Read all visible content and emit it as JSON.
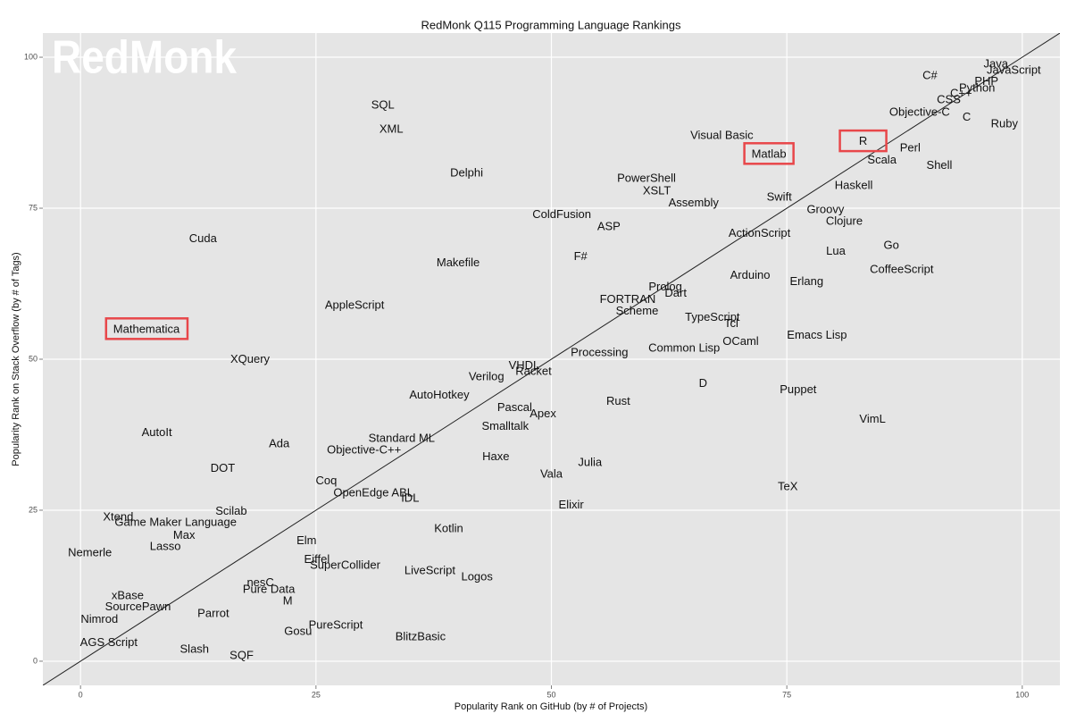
{
  "chart_data": {
    "type": "text-scatter",
    "title": "RedMonk Q115 Programming Language Rankings",
    "x_label": "Popularity Rank on GitHub (by # of Projects)",
    "y_label": "Popularity Rank on Stack Overflow (by # of Tags)",
    "watermark": "RedMonk",
    "xlim": [
      -4,
      104
    ],
    "ylim": [
      -4,
      104
    ],
    "xticks": [
      0,
      25,
      50,
      75,
      100
    ],
    "yticks": [
      0,
      25,
      50,
      75,
      100
    ],
    "grid": true,
    "diagonal": true,
    "highlight_color": "#e8474a",
    "points": [
      {
        "label": "Java",
        "x": 97.2,
        "y": 98.8
      },
      {
        "label": "JavaScript",
        "x": 99.1,
        "y": 97.8
      },
      {
        "label": "PHP",
        "x": 96.2,
        "y": 95.9
      },
      {
        "label": "Python",
        "x": 95.2,
        "y": 94.8
      },
      {
        "label": "C#",
        "x": 90.2,
        "y": 96.9
      },
      {
        "label": "C++",
        "x": 93.5,
        "y": 93.9
      },
      {
        "label": "CSS",
        "x": 92.2,
        "y": 92.9
      },
      {
        "label": "Objective-C",
        "x": 89.1,
        "y": 90.8
      },
      {
        "label": "C",
        "x": 94.1,
        "y": 90.0
      },
      {
        "label": "Ruby",
        "x": 98.1,
        "y": 88.9
      },
      {
        "label": "Visual Basic",
        "x": 68.1,
        "y": 87.0
      },
      {
        "label": "R",
        "x": 83.1,
        "y": 86.0,
        "highlight": true
      },
      {
        "label": "Matlab",
        "x": 73.1,
        "y": 83.9,
        "highlight": true
      },
      {
        "label": "Perl",
        "x": 88.1,
        "y": 84.9
      },
      {
        "label": "Scala",
        "x": 85.1,
        "y": 82.9
      },
      {
        "label": "Shell",
        "x": 91.2,
        "y": 82.0
      },
      {
        "label": "SQL",
        "x": 32.1,
        "y": 92.0
      },
      {
        "label": "XML",
        "x": 33.0,
        "y": 88.0
      },
      {
        "label": "Delphi",
        "x": 41.0,
        "y": 80.8
      },
      {
        "label": "PowerShell",
        "x": 60.1,
        "y": 79.9
      },
      {
        "label": "XSLT",
        "x": 61.2,
        "y": 77.8
      },
      {
        "label": "Assembly",
        "x": 65.1,
        "y": 75.8
      },
      {
        "label": "Swift",
        "x": 74.2,
        "y": 76.8
      },
      {
        "label": "Haskell",
        "x": 82.1,
        "y": 78.7
      },
      {
        "label": "Groovy",
        "x": 79.1,
        "y": 74.7
      },
      {
        "label": "Clojure",
        "x": 81.1,
        "y": 72.8
      },
      {
        "label": "ColdFusion",
        "x": 51.1,
        "y": 73.9
      },
      {
        "label": "ASP",
        "x": 56.1,
        "y": 71.9
      },
      {
        "label": "ActionScript",
        "x": 72.1,
        "y": 70.8
      },
      {
        "label": "Cuda",
        "x": 13.0,
        "y": 69.9
      },
      {
        "label": "Go",
        "x": 86.1,
        "y": 68.8
      },
      {
        "label": "Lua",
        "x": 80.2,
        "y": 67.8
      },
      {
        "label": "F#",
        "x": 53.1,
        "y": 66.9
      },
      {
        "label": "Makefile",
        "x": 40.1,
        "y": 65.9
      },
      {
        "label": "CoffeeScript",
        "x": 87.2,
        "y": 64.8
      },
      {
        "label": "Arduino",
        "x": 71.1,
        "y": 63.8
      },
      {
        "label": "Erlang",
        "x": 77.1,
        "y": 62.8
      },
      {
        "label": "Prolog",
        "x": 62.1,
        "y": 61.9
      },
      {
        "label": "Dart",
        "x": 63.2,
        "y": 60.9
      },
      {
        "label": "FORTRAN",
        "x": 58.1,
        "y": 59.8
      },
      {
        "label": "Scheme",
        "x": 59.1,
        "y": 57.9
      },
      {
        "label": "AppleScript",
        "x": 29.1,
        "y": 58.9
      },
      {
        "label": "TypeScript",
        "x": 67.1,
        "y": 56.9
      },
      {
        "label": "Tcl",
        "x": 69.1,
        "y": 55.8
      },
      {
        "label": "Mathematica",
        "x": 7.0,
        "y": 54.9,
        "highlight": true
      },
      {
        "label": "Emacs Lisp",
        "x": 78.2,
        "y": 53.9
      },
      {
        "label": "OCaml",
        "x": 70.1,
        "y": 52.9
      },
      {
        "label": "Common Lisp",
        "x": 64.1,
        "y": 51.8
      },
      {
        "label": "Processing",
        "x": 55.1,
        "y": 51.0
      },
      {
        "label": "XQuery",
        "x": 18.0,
        "y": 49.9
      },
      {
        "label": "VHDL",
        "x": 47.1,
        "y": 48.9
      },
      {
        "label": "Racket",
        "x": 48.1,
        "y": 47.9
      },
      {
        "label": "Verilog",
        "x": 43.1,
        "y": 47.0
      },
      {
        "label": "D",
        "x": 66.1,
        "y": 45.9
      },
      {
        "label": "Puppet",
        "x": 76.2,
        "y": 44.9
      },
      {
        "label": "AutoHotkey",
        "x": 38.1,
        "y": 44.0
      },
      {
        "label": "Rust",
        "x": 57.1,
        "y": 43.0
      },
      {
        "label": "Pascal",
        "x": 46.1,
        "y": 41.9
      },
      {
        "label": "Apex",
        "x": 49.1,
        "y": 40.9
      },
      {
        "label": "VimL",
        "x": 84.1,
        "y": 40.0
      },
      {
        "label": "Smalltalk",
        "x": 45.1,
        "y": 38.8
      },
      {
        "label": "AutoIt",
        "x": 8.1,
        "y": 37.8
      },
      {
        "label": "Standard ML",
        "x": 34.1,
        "y": 36.8
      },
      {
        "label": "Ada",
        "x": 21.1,
        "y": 35.9
      },
      {
        "label": "Objective-C++",
        "x": 30.1,
        "y": 34.9
      },
      {
        "label": "Haxe",
        "x": 44.1,
        "y": 33.8
      },
      {
        "label": "Julia",
        "x": 54.1,
        "y": 32.8
      },
      {
        "label": "DOT",
        "x": 15.1,
        "y": 31.9
      },
      {
        "label": "Vala",
        "x": 50.0,
        "y": 30.9
      },
      {
        "label": "Coq",
        "x": 26.1,
        "y": 29.8
      },
      {
        "label": "TeX",
        "x": 75.1,
        "y": 28.8
      },
      {
        "label": "OpenEdge ABL",
        "x": 31.1,
        "y": 27.8
      },
      {
        "label": "IDL",
        "x": 35.0,
        "y": 26.9
      },
      {
        "label": "Elixir",
        "x": 52.1,
        "y": 25.8
      },
      {
        "label": "Scilab",
        "x": 16.0,
        "y": 24.8
      },
      {
        "label": "Xtend",
        "x": 4.0,
        "y": 23.8
      },
      {
        "label": "Game Maker Language",
        "x": 10.1,
        "y": 22.9
      },
      {
        "label": "Kotlin",
        "x": 39.1,
        "y": 21.9
      },
      {
        "label": "Max",
        "x": 11.0,
        "y": 20.8
      },
      {
        "label": "Elm",
        "x": 24.0,
        "y": 19.9
      },
      {
        "label": "Lasso",
        "x": 9.0,
        "y": 18.9
      },
      {
        "label": "Nemerle",
        "x": 1.0,
        "y": 17.9
      },
      {
        "label": "Eiffel",
        "x": 25.1,
        "y": 16.8
      },
      {
        "label": "SuperCollider",
        "x": 28.1,
        "y": 15.8
      },
      {
        "label": "LiveScript",
        "x": 37.1,
        "y": 14.9
      },
      {
        "label": "Logos",
        "x": 42.1,
        "y": 13.9
      },
      {
        "label": "nesC",
        "x": 19.1,
        "y": 12.9
      },
      {
        "label": "Pure Data",
        "x": 20.0,
        "y": 11.8
      },
      {
        "label": "xBase",
        "x": 5.0,
        "y": 10.8
      },
      {
        "label": "M",
        "x": 22.0,
        "y": 9.9
      },
      {
        "label": "SourcePawn",
        "x": 6.1,
        "y": 8.9
      },
      {
        "label": "Parrot",
        "x": 14.1,
        "y": 7.8
      },
      {
        "label": "Nimrod",
        "x": 2.0,
        "y": 6.9
      },
      {
        "label": "PureScript",
        "x": 27.1,
        "y": 5.9
      },
      {
        "label": "Gosu",
        "x": 23.1,
        "y": 4.9
      },
      {
        "label": "BlitzBasic",
        "x": 36.1,
        "y": 4.0
      },
      {
        "label": "AGS Script",
        "x": 3.0,
        "y": 3.0
      },
      {
        "label": "Slash",
        "x": 12.1,
        "y": 1.9
      },
      {
        "label": "SQF",
        "x": 17.1,
        "y": 0.9
      }
    ]
  }
}
